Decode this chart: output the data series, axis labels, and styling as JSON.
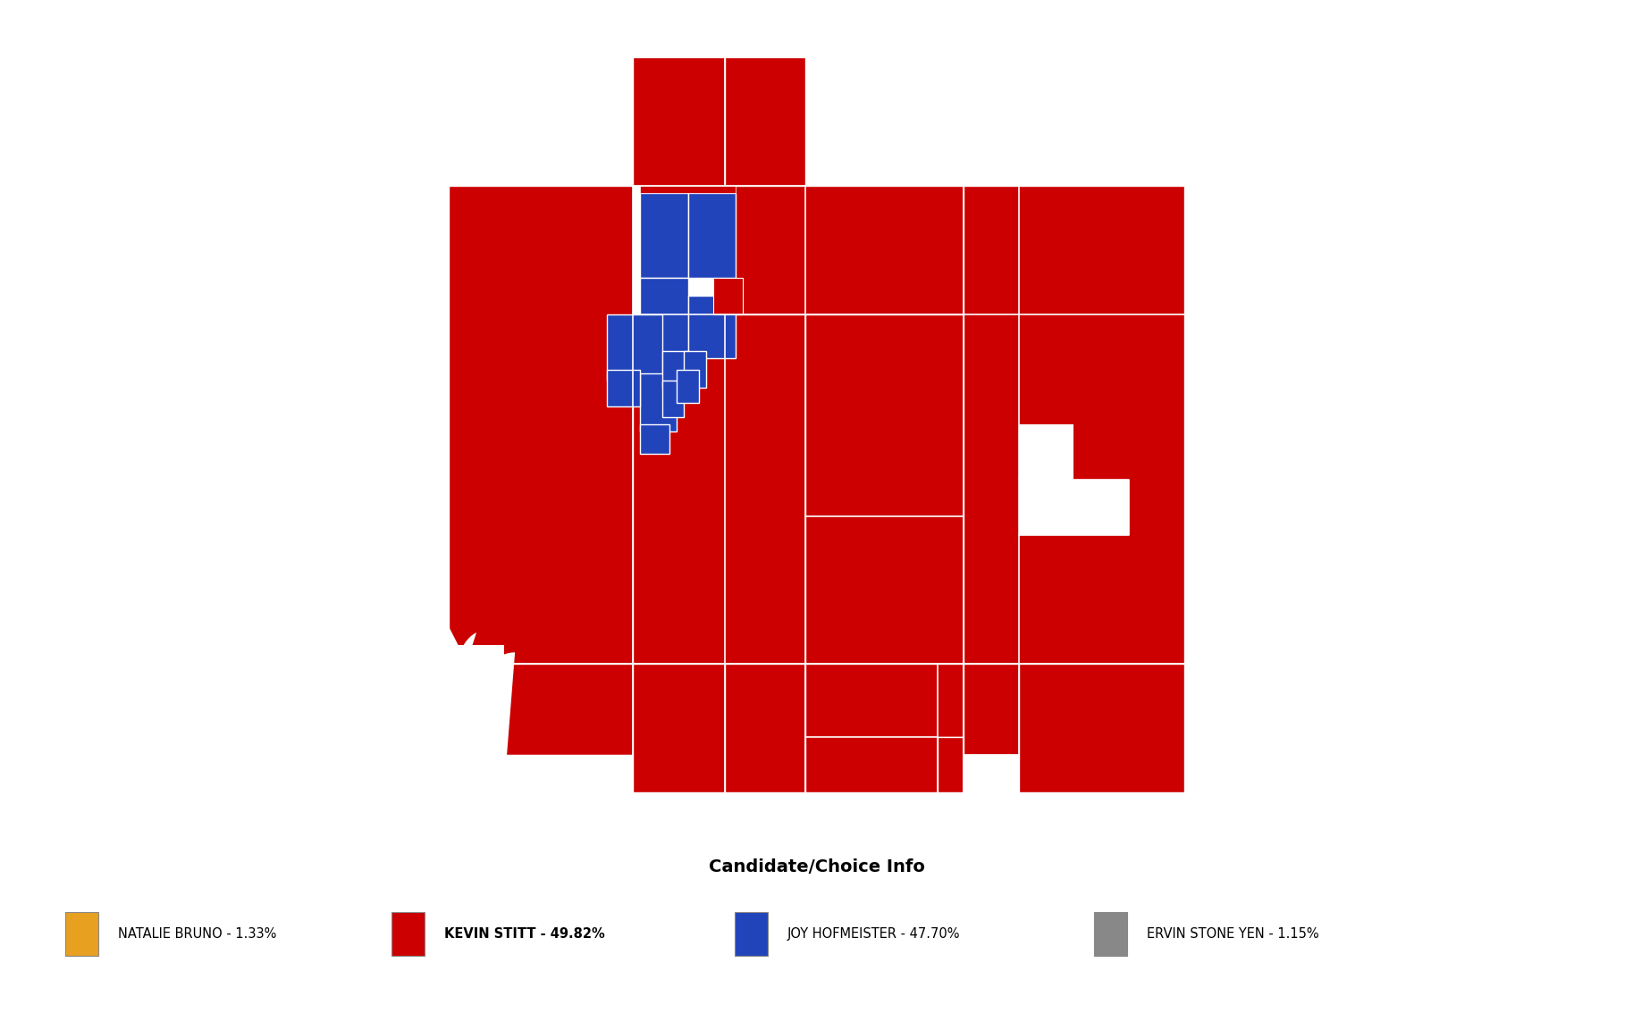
{
  "legend_title": "Candidate/Choice Info",
  "candidates": [
    {
      "name": "NATALIE BRUNO",
      "pct": "1.33%",
      "color": "#E8A020",
      "bold": false
    },
    {
      "name": "KEVIN STITT",
      "pct": "49.82%",
      "color": "#CC0000",
      "bold": true
    },
    {
      "name": "JOY HOFMEISTER",
      "pct": "47.70%",
      "color": "#2244BB",
      "bold": false
    },
    {
      "name": "ERVIN STONE YEN",
      "pct": "1.15%",
      "color": "#888888",
      "bold": false
    }
  ],
  "red_color": "#CC0000",
  "blue_color": "#2244BB",
  "background_color": "#FFFFFF"
}
